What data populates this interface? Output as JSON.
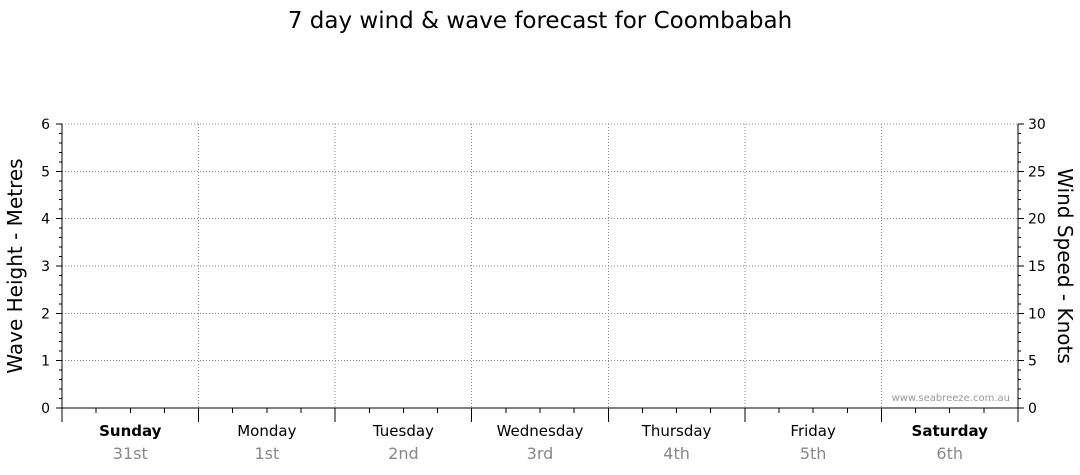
{
  "chart_data": {
    "type": "line",
    "title": "7 day wind & wave forecast for Coombabah",
    "ylabel_left": "Wave Height - Metres",
    "ylabel_right": "Wind Speed - Knots",
    "ylim_left": [
      0,
      6
    ],
    "ylim_right": [
      0,
      30
    ],
    "yticks_left": [
      "0",
      "1",
      "2",
      "3",
      "4",
      "5",
      "6"
    ],
    "yticks_right": [
      "0",
      "5",
      "10",
      "15",
      "20",
      "25",
      "30"
    ],
    "days": [
      {
        "name": "Sunday",
        "date": "31st",
        "bold": true
      },
      {
        "name": "Monday",
        "date": "1st",
        "bold": false
      },
      {
        "name": "Tuesday",
        "date": "2nd",
        "bold": false
      },
      {
        "name": "Wednesday",
        "date": "3rd",
        "bold": false
      },
      {
        "name": "Thursday",
        "date": "4th",
        "bold": false
      },
      {
        "name": "Friday",
        "date": "5th",
        "bold": false
      },
      {
        "name": "Saturday",
        "date": "6th",
        "bold": true
      }
    ],
    "series": [],
    "grid": true,
    "watermark": "www.seabreeze.com.au",
    "colors": {
      "grid": "#888888",
      "axis": "#000000",
      "date_text": "#888888"
    }
  }
}
